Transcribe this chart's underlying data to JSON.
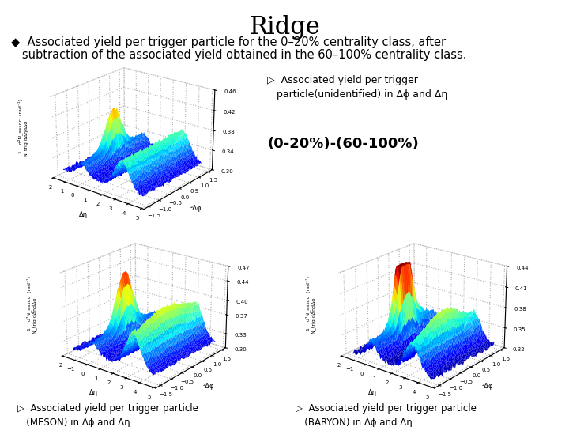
{
  "title": "Ridge",
  "title_fontsize": 22,
  "bullet_text_line1": "◆  Associated yield per trigger particle for the 0–20% centrality class, after",
  "bullet_text_line2": "   subtraction of the associated yield obtained in the 60–100% centrality class.",
  "bullet_fontsize": 10.5,
  "right_top_text1": "▷  Associated yield per trigger\n   particle(unidentified) in Δϕ and Δη",
  "right_top_text2": "(0-20%)-(60-100%)",
  "bottom_left_text": "▷  Associated yield per trigger particle\n   (MESON) in Δϕ and Δη",
  "bottom_right_text": "▷  Associated yield per trigger particle\n   (BARYON) in Δϕ and Δη",
  "bg_color": "#ffffff",
  "text_color": "#000000",
  "plot1_zlim": [
    0.3,
    0.46
  ],
  "plot2_zlim": [
    0.3,
    0.47
  ],
  "plot3_zlim": [
    0.32,
    0.44
  ]
}
